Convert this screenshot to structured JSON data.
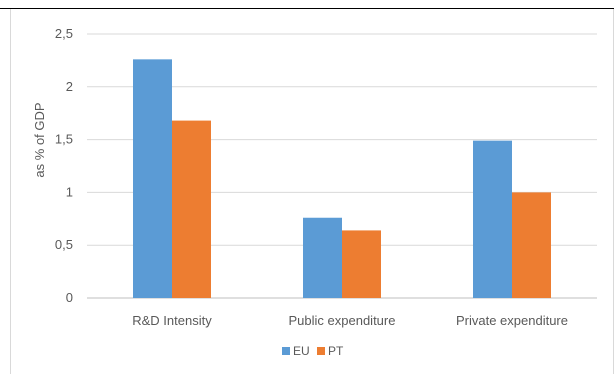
{
  "chart_data": {
    "type": "bar",
    "categories": [
      "R&D Intensity",
      "Public expenditure",
      "Private expenditure"
    ],
    "series": [
      {
        "name": "EU",
        "color": "#5b9bd5",
        "values": [
          2.26,
          0.76,
          1.49
        ]
      },
      {
        "name": "PT",
        "color": "#ed7d31",
        "values": [
          1.68,
          0.64,
          1.0
        ]
      }
    ],
    "ylabel": "as % of GDP",
    "xlabel": "",
    "title": "",
    "ylim": [
      0,
      2.5
    ],
    "yticks": [
      0,
      0.5,
      1,
      1.5,
      2,
      2.5
    ],
    "ytick_labels": [
      "0",
      "0,5",
      "1",
      "1,5",
      "2",
      "2,5"
    ],
    "grid": true,
    "legend_position": "bottom"
  }
}
